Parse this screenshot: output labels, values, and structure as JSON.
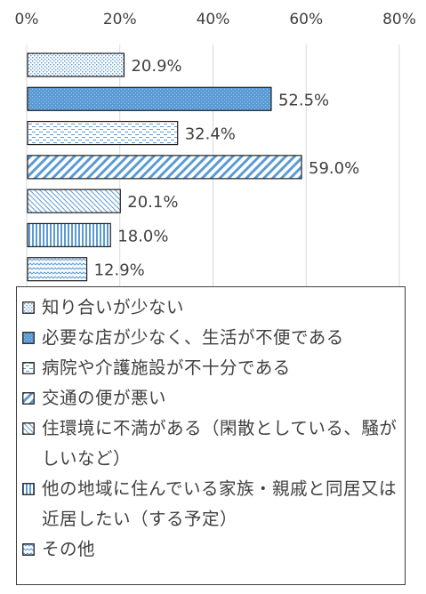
{
  "chart_data": {
    "type": "bar",
    "orientation": "horizontal",
    "x_ticks": [
      "0%",
      "20%",
      "40%",
      "60%",
      "80%"
    ],
    "xlim": [
      0,
      80
    ],
    "grid": true,
    "legend_position": "bottom",
    "series": [
      {
        "name": "知り合いが少ない",
        "value": 20.9,
        "label": "20.9%",
        "pattern": "dots",
        "color": "#5b9bd5"
      },
      {
        "name": "必要な店が少なく、生活が不便である",
        "value": 52.5,
        "label": "52.5%",
        "pattern": "solid-dots",
        "color": "#5b9bd5"
      },
      {
        "name": "病院や介護施設が不十分である",
        "value": 32.4,
        "label": "32.4%",
        "pattern": "dashes",
        "color": "#5b9bd5"
      },
      {
        "name": "交通の便が悪い",
        "value": 59.0,
        "label": "59.0%",
        "pattern": "wide-diagonal",
        "color": "#5b9bd5"
      },
      {
        "name": "住環境に不満がある（閑散としている、騒がしいなど）",
        "value": 20.1,
        "label": "20.1%",
        "pattern": "thin-diagonal",
        "color": "#5b9bd5"
      },
      {
        "name": "他の地域に住んでいる家族・親戚と同居又は近居したい（する予定）",
        "value": 18.0,
        "label": "18.0%",
        "pattern": "vertical",
        "color": "#5b9bd5"
      },
      {
        "name": "その他",
        "value": 12.9,
        "label": "12.9%",
        "pattern": "wave",
        "color": "#5b9bd5"
      }
    ]
  }
}
